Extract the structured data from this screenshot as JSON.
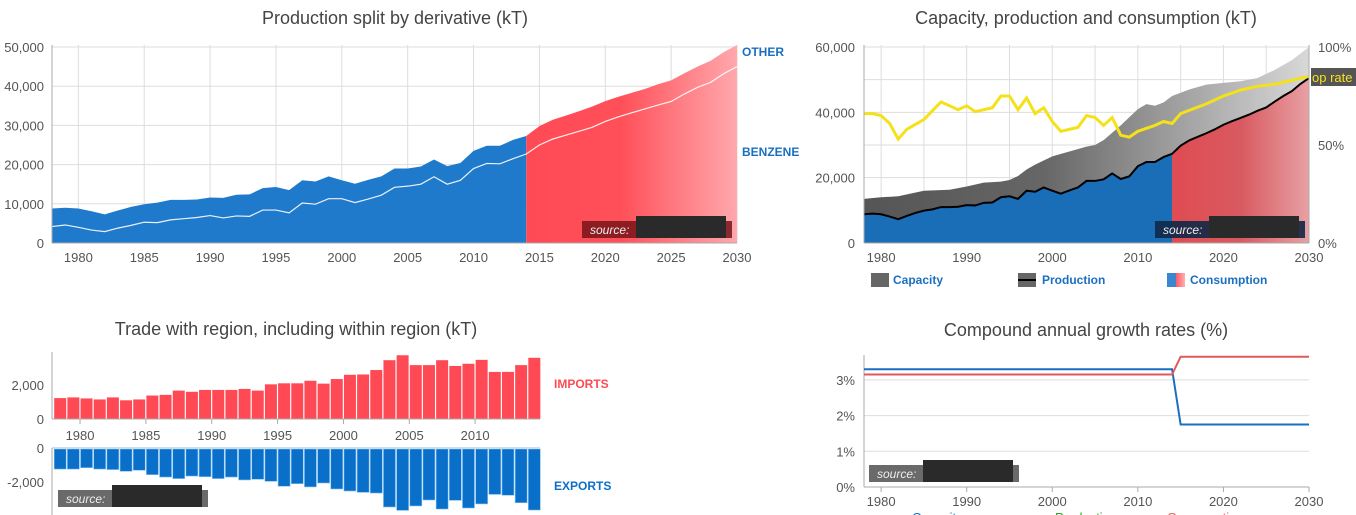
{
  "chart_data": [
    {
      "type": "area",
      "title": "Production split by derivative (kT)",
      "xlim": [
        1978,
        2030
      ],
      "ylim": [
        0,
        50000
      ],
      "grid": true,
      "x_ticks": [
        1980,
        1985,
        1990,
        1995,
        2000,
        2005,
        2010,
        2015,
        2020,
        2025,
        2030
      ],
      "y_ticks": [
        "0",
        "10,000",
        "20,000",
        "30,000",
        "40,000",
        "50,000"
      ],
      "series_labels": [
        "OTHER",
        "BENZENE"
      ],
      "years": [
        1978,
        1979,
        1980,
        1981,
        1982,
        1983,
        1984,
        1985,
        1986,
        1987,
        1988,
        1989,
        1990,
        1991,
        1992,
        1993,
        1994,
        1995,
        1996,
        1997,
        1998,
        1999,
        2000,
        2001,
        2002,
        2003,
        2004,
        2005,
        2006,
        2007,
        2008,
        2009,
        2010,
        2011,
        2012,
        2013,
        2014,
        2015,
        2016,
        2017,
        2018,
        2019,
        2020,
        2021,
        2022,
        2023,
        2024,
        2025,
        2026,
        2027,
        2028,
        2029,
        2030
      ],
      "total": [
        8800,
        9000,
        8800,
        8100,
        7300,
        8300,
        9200,
        9900,
        10300,
        11000,
        11000,
        11100,
        11600,
        11500,
        12300,
        12400,
        14000,
        14300,
        13500,
        16000,
        15700,
        17000,
        16000,
        15100,
        16100,
        17000,
        19000,
        19000,
        19500,
        21300,
        19600,
        20400,
        23500,
        24800,
        24800,
        26300,
        27300,
        29800,
        31400,
        32500,
        33600,
        34800,
        36200,
        37300,
        38300,
        39300,
        40500,
        41500,
        43300,
        45000,
        46500,
        48700,
        50500
      ],
      "benzene": [
        4200,
        4600,
        4000,
        3300,
        2900,
        3800,
        4500,
        5300,
        5200,
        5900,
        6200,
        6500,
        7000,
        6400,
        6900,
        6800,
        8400,
        8400,
        7700,
        10200,
        9900,
        11300,
        11300,
        10300,
        11200,
        12200,
        14200,
        14500,
        15000,
        16900,
        15000,
        16000,
        19000,
        20300,
        20200,
        21500,
        22700,
        25000,
        26500,
        27500,
        28500,
        29500,
        31000,
        32200,
        33200,
        34200,
        35200,
        36100,
        38000,
        39700,
        41000,
        43200,
        45000
      ],
      "forecast_from": 2014,
      "colors": {
        "historic": "#1f7acc",
        "forecast": "#ff4a55",
        "forecast_end": "#ffa8ad",
        "label": "#1a6fc1"
      },
      "source_label": "source:"
    },
    {
      "type": "area",
      "title": "Capacity, production and consumption (kT)",
      "xlim": [
        1978,
        2030
      ],
      "ylim": [
        0,
        60000
      ],
      "y2lim": [
        0,
        100
      ],
      "grid": true,
      "x_ticks": [
        1980,
        1990,
        2000,
        2010,
        2020,
        2030
      ],
      "y_ticks": [
        "0",
        "20,000",
        "40,000",
        "60,000"
      ],
      "y2_ticks": [
        "0%",
        "50%",
        "100%"
      ],
      "op_rate_label": "op rate",
      "capacity": {
        "years": [
          1978,
          1980,
          1982,
          1985,
          1988,
          1990,
          1992,
          1994,
          1995,
          1996,
          1997,
          1998,
          2000,
          2002,
          2004,
          2005,
          2006,
          2008,
          2010,
          2011,
          2012,
          2013,
          2014,
          2016,
          2018,
          2020,
          2022,
          2024,
          2026,
          2028,
          2030
        ],
        "values": [
          13500,
          14000,
          14300,
          16000,
          16300,
          17300,
          18500,
          18800,
          19300,
          20500,
          22500,
          24000,
          26500,
          28000,
          29500,
          30000,
          31500,
          36000,
          41000,
          42500,
          42000,
          43000,
          45000,
          47000,
          48500,
          49000,
          49500,
          50500,
          53000,
          56000,
          60000
        ]
      },
      "op_rate": {
        "years": [
          1978,
          1979,
          1980,
          1981,
          1982,
          1983,
          1985,
          1987,
          1989,
          1990,
          1991,
          1993,
          1994,
          1995,
          1996,
          1997,
          1998,
          1999,
          2000,
          2001,
          2003,
          2004,
          2005,
          2006,
          2007,
          2008,
          2009,
          2010,
          2012,
          2013,
          2014,
          2015,
          2018,
          2020,
          2022,
          2024,
          2026,
          2028,
          2030
        ],
        "values": [
          66,
          66,
          65,
          61,
          53,
          58,
          63,
          72,
          68,
          70,
          67,
          69,
          75,
          75,
          68,
          74,
          66,
          69,
          62,
          57,
          59,
          65,
          64,
          60,
          64,
          55,
          54,
          57,
          60,
          62,
          61,
          66,
          71,
          75,
          78,
          80,
          81,
          83,
          85
        ]
      },
      "legend": [
        {
          "label": "Capacity"
        },
        {
          "label": "Production"
        },
        {
          "label": "Consumption"
        }
      ],
      "colors": {
        "capacity": "#666666",
        "production": "#000000",
        "consumption": "#1a6eb8",
        "forecast": "#e04b52",
        "op_rate": "#f5e11a",
        "label": "#1a6fc1"
      },
      "source_label": "source:"
    },
    {
      "type": "bar",
      "title": "Trade with region, including within region (kT)",
      "years": [
        1978,
        1979,
        1980,
        1981,
        1982,
        1983,
        1984,
        1985,
        1986,
        1987,
        1988,
        1989,
        1990,
        1991,
        1992,
        1993,
        1994,
        1995,
        1996,
        1997,
        1998,
        1999,
        2000,
        2001,
        2002,
        2003,
        2004,
        2005,
        2006,
        2007,
        2008,
        2009,
        2010,
        2011,
        2012,
        2013,
        2014
      ],
      "x_ticks": [
        1980,
        1985,
        1990,
        1995,
        2000,
        2005,
        2010
      ],
      "import_ticks": [
        "0",
        "2,000"
      ],
      "export_ticks": [
        "0",
        "-2,000"
      ],
      "series": [
        {
          "name": "IMPORTS",
          "color": "#ff4a55",
          "values": [
            1230,
            1270,
            1210,
            1150,
            1270,
            1100,
            1150,
            1380,
            1420,
            1670,
            1600,
            1710,
            1710,
            1710,
            1770,
            1670,
            2040,
            2100,
            2100,
            2250,
            2080,
            2350,
            2600,
            2620,
            2880,
            3460,
            3750,
            3170,
            3170,
            3460,
            3120,
            3250,
            3480,
            2770,
            2770,
            3170,
            3600
          ]
        },
        {
          "name": "EXPORTS",
          "color": "#0a6fc9",
          "values": [
            -1240,
            -1240,
            -1160,
            -1240,
            -1270,
            -1370,
            -1310,
            -1570,
            -1710,
            -1800,
            -1650,
            -1690,
            -1800,
            -1710,
            -1880,
            -1840,
            -1960,
            -2250,
            -2100,
            -2290,
            -2060,
            -2410,
            -2530,
            -2610,
            -2650,
            -3470,
            -3670,
            -3410,
            -3060,
            -3590,
            -3080,
            -3530,
            -3290,
            -2730,
            -2780,
            -3220,
            -3650
          ]
        }
      ],
      "source_label": "source:"
    },
    {
      "type": "line",
      "title": "Compound annual growth rates (%)",
      "xlim": [
        1978,
        2030
      ],
      "ylim": [
        0,
        3.7
      ],
      "grid": true,
      "x_ticks": [
        1980,
        1990,
        2000,
        2010,
        2020,
        2030
      ],
      "y_ticks": [
        "0%",
        "1%",
        "2%",
        "3%"
      ],
      "series": [
        {
          "name": "Capacity",
          "color": "#1a6fc1",
          "x": [
            1978,
            2014,
            2015,
            2030
          ],
          "values": [
            3.3,
            3.3,
            1.75,
            1.75
          ]
        },
        {
          "name": "Production",
          "color": "#2ca02c",
          "x": [],
          "values": []
        },
        {
          "name": "Consumption",
          "color": "#e05a5a",
          "x": [
            1978,
            2014,
            2015,
            2030
          ],
          "values": [
            3.15,
            3.15,
            3.65,
            3.65
          ]
        }
      ],
      "source_label": "source:"
    }
  ]
}
